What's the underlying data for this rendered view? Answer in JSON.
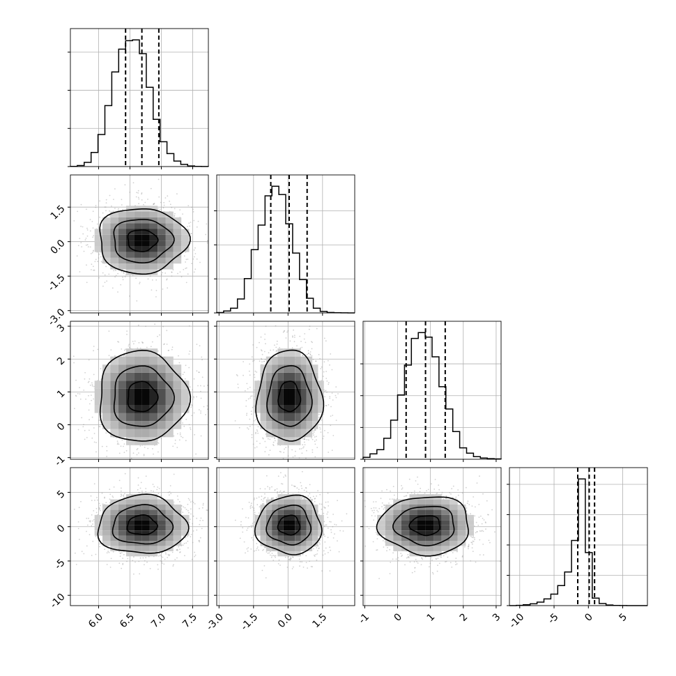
{
  "chart_data": {
    "type": "corner",
    "parameters": [
      {
        "ticks": [
          "6.0",
          "6.5",
          "7.0",
          "7.5"
        ],
        "tick_values": [
          6.0,
          6.5,
          7.0,
          7.5
        ],
        "range": [
          5.55,
          7.75
        ],
        "hist_ticks": [
          0,
          500,
          1000,
          1500
        ],
        "hist": [
          2,
          14,
          55,
          185,
          420,
          800,
          1240,
          1540,
          1650,
          1660,
          1480,
          1040,
          620,
          325,
          170,
          72,
          28,
          8,
          3,
          1
        ],
        "quantiles": [
          6.43,
          6.69,
          6.96
        ]
      },
      {
        "ticks": [
          "-3.0",
          "-1.5",
          "0.0",
          "1.5"
        ],
        "tick_values": [
          -3.0,
          -1.5,
          0.0,
          1.5
        ],
        "range": [
          -3.1,
          2.9
        ],
        "hist_ticks": [
          0,
          500,
          1000,
          1500
        ],
        "hist": [
          5,
          28,
          70,
          205,
          505,
          930,
          1290,
          1720,
          1860,
          1740,
          1310,
          880,
          490,
          215,
          70,
          22,
          6,
          2,
          1,
          0
        ],
        "quantiles": [
          -0.75,
          0.05,
          0.83
        ]
      },
      {
        "ticks": [
          "-1",
          "0",
          "1",
          "2",
          "3"
        ],
        "tick_values": [
          -1,
          0,
          1,
          2,
          3
        ],
        "range": [
          -1.05,
          3.15
        ],
        "hist_ticks": [
          0,
          500,
          1000,
          1500
        ],
        "hist": [
          30,
          85,
          150,
          330,
          615,
          1010,
          1480,
          1900,
          1990,
          1920,
          1610,
          1140,
          790,
          435,
          180,
          95,
          40,
          20,
          10,
          5
        ],
        "quantiles": [
          0.26,
          0.85,
          1.45
        ]
      },
      {
        "ticks": [
          "-10",
          "-5",
          "0",
          "5"
        ],
        "tick_values": [
          -10,
          -5,
          0,
          5
        ],
        "range": [
          -11.5,
          8.6
        ],
        "hist_ticks": [
          0,
          2000,
          4000,
          6000,
          8000
        ],
        "hist": [
          2,
          20,
          55,
          120,
          230,
          440,
          760,
          1320,
          2220,
          4300,
          8350,
          3500,
          490,
          140,
          40,
          12,
          5,
          2,
          1,
          1
        ],
        "quantiles": [
          -1.55,
          0.12,
          0.9
        ]
      }
    ],
    "pairs": [
      {
        "row": 1,
        "col": 0,
        "center": [
          6.69,
          0.05
        ],
        "sigma": [
          0.4,
          0.8
        ],
        "levels": [
          0.5,
          1.0,
          1.5
        ]
      },
      {
        "row": 2,
        "col": 0,
        "center": [
          6.69,
          0.85
        ],
        "sigma": [
          0.4,
          0.78
        ],
        "levels": [
          0.5,
          1.0,
          1.5
        ]
      },
      {
        "row": 2,
        "col": 1,
        "center": [
          0.05,
          0.85
        ],
        "sigma": [
          0.8,
          0.78
        ],
        "levels": [
          0.5,
          1.0,
          1.5
        ]
      },
      {
        "row": 3,
        "col": 0,
        "center": [
          6.69,
          0.2
        ],
        "sigma": [
          0.4,
          2.4
        ],
        "levels": [
          0.5,
          1.0,
          1.5
        ]
      },
      {
        "row": 3,
        "col": 1,
        "center": [
          0.05,
          0.2
        ],
        "sigma": [
          0.8,
          2.4
        ],
        "levels": [
          0.5,
          1.0,
          1.5
        ]
      },
      {
        "row": 3,
        "col": 2,
        "center": [
          0.85,
          0.2
        ],
        "sigma": [
          0.78,
          2.4
        ],
        "levels": [
          0.5,
          1.0,
          1.5
        ]
      }
    ],
    "grid": true,
    "colors": {
      "line": "#000000",
      "grid": "#b0b0b0",
      "scatter": "#9a9a9a"
    }
  }
}
